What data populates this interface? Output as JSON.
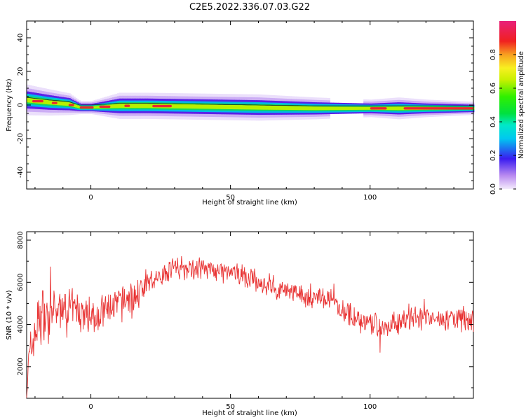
{
  "title": "C2E5.2022.336.07.03.G22",
  "chart_data": [
    {
      "type": "heatmap",
      "xlabel": "Height of straight line (km)",
      "ylabel": "Frequency (Hz)",
      "xlim": [
        -23,
        137
      ],
      "ylim": [
        -50,
        50
      ],
      "xticks": [
        0,
        50,
        100
      ],
      "yticks": [
        -40,
        -20,
        0,
        20,
        40
      ],
      "colorbar": {
        "label": "Normalized spectral amplitude",
        "range": [
          0.0,
          1.0
        ],
        "ticks": [
          "0.0",
          "0.2",
          "0.4",
          "0.6",
          "0.8"
        ],
        "colormap": "gist_ncar-like (white-violet-blue-cyan-green-yellow-red-magenta)"
      },
      "ridge": {
        "description": "narrow-band spectral ridge near 0 Hz; frequency drifts from about +3 Hz to about -2 Hz",
        "x": [
          -23,
          -15,
          -8,
          -4,
          0,
          10,
          20,
          40,
          60,
          80,
          100,
          110,
          120,
          137
        ],
        "frequency": [
          3,
          1.5,
          0.5,
          -1.5,
          -1.5,
          -0.5,
          -0.5,
          -1,
          -1.5,
          -2,
          -2,
          -2,
          -2,
          -2
        ],
        "halfwidth": [
          3.5,
          3,
          2.5,
          1.5,
          1.5,
          3,
          3,
          3,
          3,
          2.5,
          2,
          2.5,
          2,
          1.5
        ]
      }
    },
    {
      "type": "line",
      "xlabel": "Height of straight line (km)",
      "ylabel": "SNR (10 * v/v)",
      "xlim": [
        -23,
        137
      ],
      "ylim": [
        500,
        8400
      ],
      "xticks": [
        0,
        50,
        100
      ],
      "yticks": [
        2000,
        4000,
        6000,
        8000
      ],
      "series": [
        {
          "color": "#e83232",
          "x": [
            -23,
            -21,
            -19,
            -17,
            -15,
            -12,
            -8,
            -4,
            0,
            5,
            10,
            15,
            20,
            25,
            30,
            35,
            40,
            45,
            50,
            55,
            60,
            65,
            70,
            75,
            80,
            85,
            90,
            95,
            100,
            105,
            110,
            115,
            120,
            125,
            130,
            137
          ],
          "y": [
            1500,
            3000,
            4200,
            4500,
            4300,
            4700,
            4800,
            4600,
            4400,
            4600,
            5000,
            5300,
            5900,
            6300,
            6800,
            6600,
            6800,
            6500,
            6400,
            6300,
            6000,
            5800,
            5600,
            5400,
            5300,
            5200,
            4700,
            4300,
            4000,
            3900,
            4100,
            4300,
            4400,
            4200,
            4300,
            4200
          ]
        }
      ]
    }
  ]
}
